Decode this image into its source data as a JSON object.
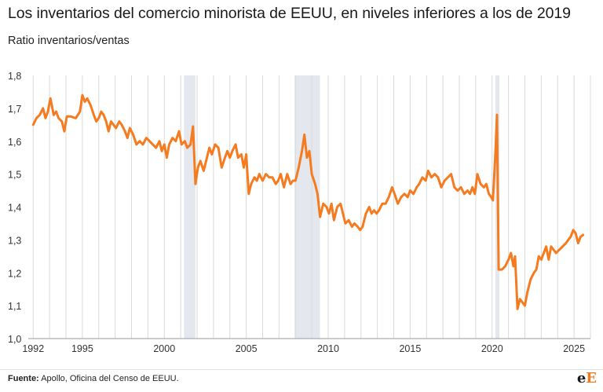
{
  "title": "Los inventarios del comercio minorista de EEUU, en niveles inferiores a los de 2019",
  "subtitle": "Ratio inventarios/ventas",
  "source_label": "Fuente:",
  "source_text": "Apollo, Oficina del Censo de EEUU.",
  "logo": {
    "main": "e",
    "accent": "E"
  },
  "colors": {
    "line": "#f47b20",
    "recession": "#e4e8ee",
    "grid": "#d9d9d9",
    "text": "#333333"
  },
  "chart_data": {
    "type": "line",
    "xlim": [
      1991.7,
      2026.0
    ],
    "ylim": [
      1.0,
      1.8
    ],
    "x_ticks": [
      1992,
      1995,
      2000,
      2005,
      2010,
      2015,
      2020,
      2025
    ],
    "y_ticks": [
      1.0,
      1.1,
      1.2,
      1.3,
      1.4,
      1.5,
      1.6,
      1.7,
      1.8
    ],
    "y_tick_labels": [
      "1,0",
      "1,1",
      "1,2",
      "1,3",
      "1,4",
      "1,5",
      "1,6",
      "1,7",
      "1,8"
    ],
    "grid": "vertical-annual",
    "recessions": [
      [
        2001.2,
        2001.9
      ],
      [
        2007.95,
        2009.5
      ],
      [
        2020.2,
        2020.45
      ]
    ],
    "series": [
      {
        "points": [
          [
            1992.0,
            1.65
          ],
          [
            1992.2,
            1.67
          ],
          [
            1992.4,
            1.68
          ],
          [
            1992.6,
            1.7
          ],
          [
            1992.75,
            1.67
          ],
          [
            1992.9,
            1.69
          ],
          [
            1993.05,
            1.73
          ],
          [
            1993.25,
            1.68
          ],
          [
            1993.4,
            1.69
          ],
          [
            1993.55,
            1.67
          ],
          [
            1993.75,
            1.66
          ],
          [
            1993.9,
            1.63
          ],
          [
            1994.05,
            1.675
          ],
          [
            1994.3,
            1.675
          ],
          [
            1994.6,
            1.67
          ],
          [
            1994.85,
            1.69
          ],
          [
            1995.0,
            1.74
          ],
          [
            1995.15,
            1.72
          ],
          [
            1995.3,
            1.73
          ],
          [
            1995.5,
            1.71
          ],
          [
            1995.7,
            1.68
          ],
          [
            1995.85,
            1.66
          ],
          [
            1996.0,
            1.67
          ],
          [
            1996.15,
            1.69
          ],
          [
            1996.3,
            1.68
          ],
          [
            1996.45,
            1.66
          ],
          [
            1996.6,
            1.63
          ],
          [
            1996.75,
            1.66
          ],
          [
            1996.9,
            1.65
          ],
          [
            1997.05,
            1.64
          ],
          [
            1997.25,
            1.66
          ],
          [
            1997.4,
            1.65
          ],
          [
            1997.6,
            1.63
          ],
          [
            1997.75,
            1.61
          ],
          [
            1997.9,
            1.64
          ],
          [
            1998.1,
            1.62
          ],
          [
            1998.3,
            1.59
          ],
          [
            1998.5,
            1.6
          ],
          [
            1998.7,
            1.59
          ],
          [
            1998.9,
            1.61
          ],
          [
            1999.1,
            1.6
          ],
          [
            1999.3,
            1.59
          ],
          [
            1999.5,
            1.58
          ],
          [
            1999.7,
            1.6
          ],
          [
            1999.85,
            1.57
          ],
          [
            2000.0,
            1.59
          ],
          [
            2000.15,
            1.55
          ],
          [
            2000.3,
            1.59
          ],
          [
            2000.5,
            1.61
          ],
          [
            2000.7,
            1.6
          ],
          [
            2000.9,
            1.63
          ],
          [
            2001.05,
            1.59
          ],
          [
            2001.25,
            1.6
          ],
          [
            2001.4,
            1.58
          ],
          [
            2001.6,
            1.59
          ],
          [
            2001.75,
            1.645
          ],
          [
            2001.9,
            1.47
          ],
          [
            2002.05,
            1.52
          ],
          [
            2002.2,
            1.54
          ],
          [
            2002.4,
            1.51
          ],
          [
            2002.55,
            1.54
          ],
          [
            2002.75,
            1.58
          ],
          [
            2002.9,
            1.56
          ],
          [
            2003.1,
            1.59
          ],
          [
            2003.3,
            1.58
          ],
          [
            2003.5,
            1.52
          ],
          [
            2003.7,
            1.55
          ],
          [
            2003.85,
            1.57
          ],
          [
            2004.0,
            1.55
          ],
          [
            2004.15,
            1.57
          ],
          [
            2004.35,
            1.59
          ],
          [
            2004.5,
            1.55
          ],
          [
            2004.7,
            1.56
          ],
          [
            2004.85,
            1.52
          ],
          [
            2005.0,
            1.56
          ],
          [
            2005.15,
            1.44
          ],
          [
            2005.3,
            1.47
          ],
          [
            2005.5,
            1.49
          ],
          [
            2005.65,
            1.48
          ],
          [
            2005.8,
            1.5
          ],
          [
            2006.0,
            1.48
          ],
          [
            2006.2,
            1.5
          ],
          [
            2006.4,
            1.49
          ],
          [
            2006.6,
            1.49
          ],
          [
            2006.8,
            1.47
          ],
          [
            2006.95,
            1.48
          ],
          [
            2007.1,
            1.5
          ],
          [
            2007.3,
            1.46
          ],
          [
            2007.5,
            1.5
          ],
          [
            2007.7,
            1.47
          ],
          [
            2007.85,
            1.48
          ],
          [
            2008.0,
            1.48
          ],
          [
            2008.2,
            1.52
          ],
          [
            2008.4,
            1.57
          ],
          [
            2008.55,
            1.62
          ],
          [
            2008.7,
            1.55
          ],
          [
            2008.85,
            1.57
          ],
          [
            2009.0,
            1.5
          ],
          [
            2009.2,
            1.47
          ],
          [
            2009.35,
            1.44
          ],
          [
            2009.5,
            1.37
          ],
          [
            2009.7,
            1.41
          ],
          [
            2009.9,
            1.4
          ],
          [
            2010.05,
            1.38
          ],
          [
            2010.2,
            1.41
          ],
          [
            2010.35,
            1.36
          ],
          [
            2010.55,
            1.4
          ],
          [
            2010.75,
            1.41
          ],
          [
            2010.9,
            1.38
          ],
          [
            2011.05,
            1.35
          ],
          [
            2011.25,
            1.36
          ],
          [
            2011.45,
            1.34
          ],
          [
            2011.6,
            1.35
          ],
          [
            2011.8,
            1.34
          ],
          [
            2011.95,
            1.33
          ],
          [
            2012.1,
            1.34
          ],
          [
            2012.3,
            1.38
          ],
          [
            2012.5,
            1.4
          ],
          [
            2012.65,
            1.38
          ],
          [
            2012.8,
            1.39
          ],
          [
            2012.95,
            1.38
          ],
          [
            2013.1,
            1.39
          ],
          [
            2013.3,
            1.41
          ],
          [
            2013.5,
            1.41
          ],
          [
            2013.7,
            1.43
          ],
          [
            2013.9,
            1.46
          ],
          [
            2014.05,
            1.44
          ],
          [
            2014.25,
            1.41
          ],
          [
            2014.45,
            1.43
          ],
          [
            2014.65,
            1.44
          ],
          [
            2014.85,
            1.43
          ],
          [
            2015.0,
            1.45
          ],
          [
            2015.2,
            1.44
          ],
          [
            2015.4,
            1.46
          ],
          [
            2015.55,
            1.47
          ],
          [
            2015.75,
            1.49
          ],
          [
            2015.95,
            1.48
          ],
          [
            2016.1,
            1.51
          ],
          [
            2016.3,
            1.49
          ],
          [
            2016.5,
            1.5
          ],
          [
            2016.7,
            1.49
          ],
          [
            2016.9,
            1.46
          ],
          [
            2017.1,
            1.48
          ],
          [
            2017.3,
            1.49
          ],
          [
            2017.5,
            1.5
          ],
          [
            2017.7,
            1.46
          ],
          [
            2017.9,
            1.45
          ],
          [
            2018.1,
            1.46
          ],
          [
            2018.3,
            1.44
          ],
          [
            2018.5,
            1.45
          ],
          [
            2018.65,
            1.44
          ],
          [
            2018.8,
            1.46
          ],
          [
            2018.95,
            1.44
          ],
          [
            2019.1,
            1.5
          ],
          [
            2019.3,
            1.47
          ],
          [
            2019.5,
            1.46
          ],
          [
            2019.65,
            1.47
          ],
          [
            2019.8,
            1.44
          ],
          [
            2019.95,
            1.43
          ],
          [
            2020.05,
            1.42
          ],
          [
            2020.2,
            1.56
          ],
          [
            2020.3,
            1.68
          ],
          [
            2020.4,
            1.21
          ],
          [
            2020.6,
            1.21
          ],
          [
            2020.8,
            1.22
          ],
          [
            2021.0,
            1.24
          ],
          [
            2021.15,
            1.26
          ],
          [
            2021.3,
            1.22
          ],
          [
            2021.4,
            1.25
          ],
          [
            2021.55,
            1.09
          ],
          [
            2021.7,
            1.12
          ],
          [
            2021.85,
            1.11
          ],
          [
            2022.0,
            1.1
          ],
          [
            2022.15,
            1.14
          ],
          [
            2022.35,
            1.18
          ],
          [
            2022.55,
            1.2
          ],
          [
            2022.7,
            1.21
          ],
          [
            2022.85,
            1.25
          ],
          [
            2023.0,
            1.24
          ],
          [
            2023.15,
            1.26
          ],
          [
            2023.3,
            1.28
          ],
          [
            2023.45,
            1.24
          ],
          [
            2023.6,
            1.28
          ],
          [
            2023.75,
            1.27
          ],
          [
            2023.9,
            1.26
          ],
          [
            2024.1,
            1.27
          ],
          [
            2024.3,
            1.28
          ],
          [
            2024.5,
            1.29
          ],
          [
            2024.65,
            1.3
          ],
          [
            2024.8,
            1.31
          ],
          [
            2024.95,
            1.33
          ],
          [
            2025.1,
            1.32
          ],
          [
            2025.25,
            1.29
          ],
          [
            2025.4,
            1.31
          ],
          [
            2025.55,
            1.315
          ]
        ]
      }
    ]
  }
}
